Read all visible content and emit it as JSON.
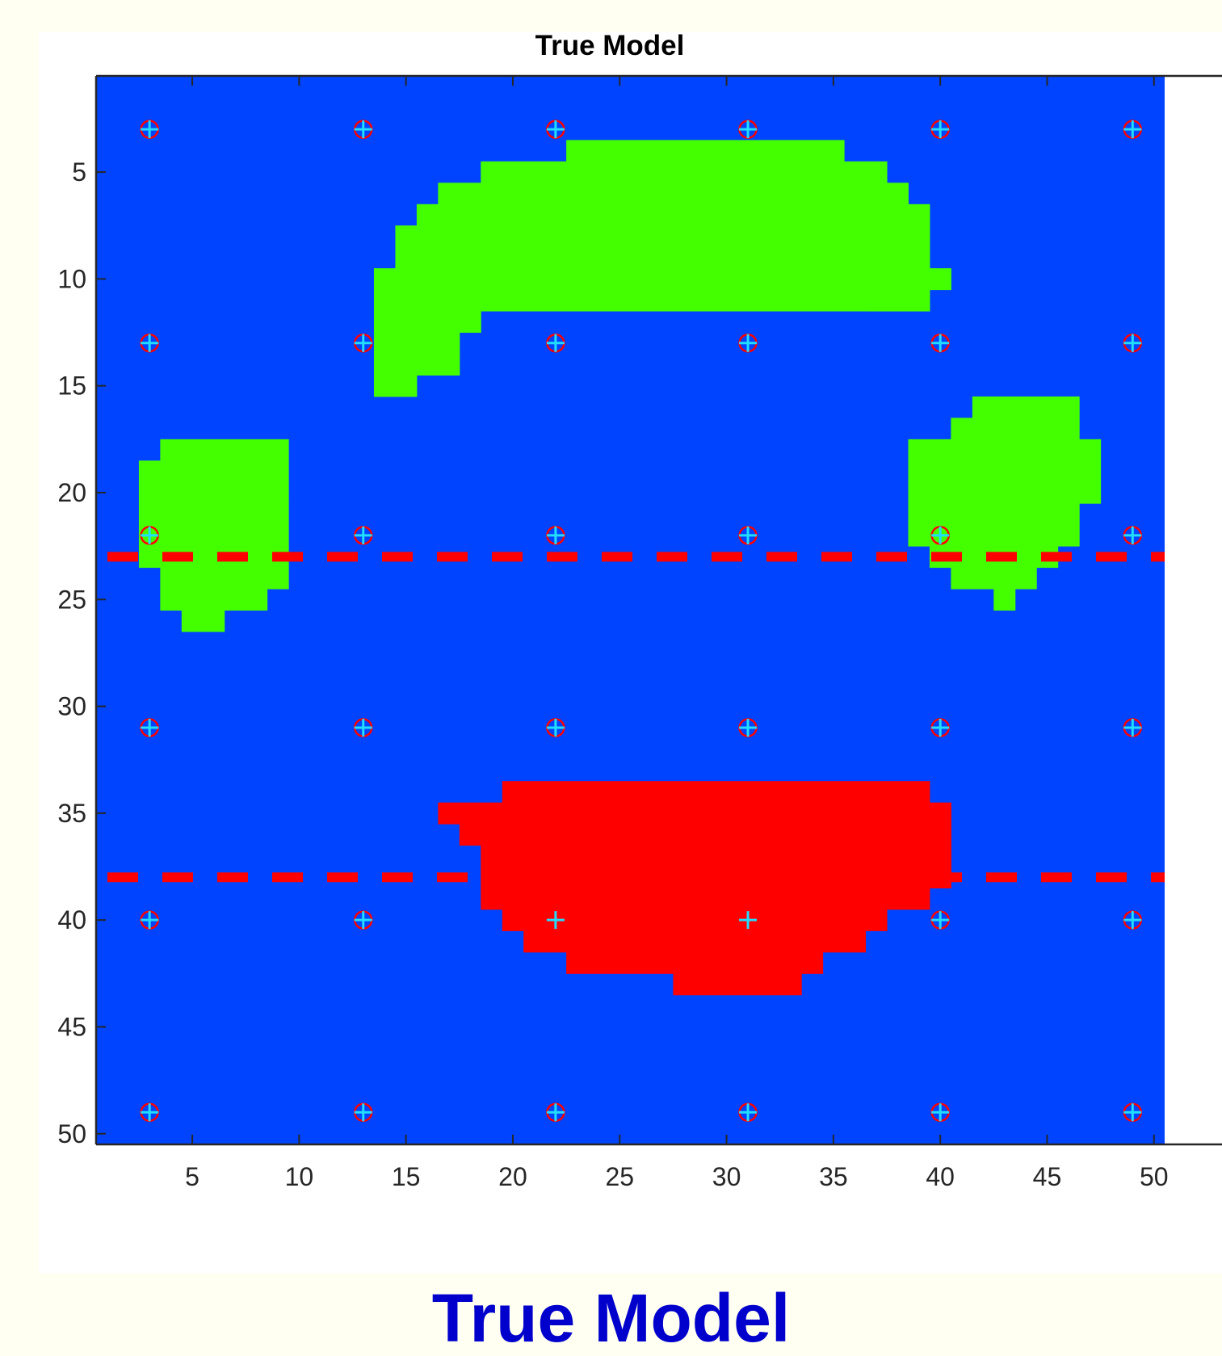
{
  "caption": "True Model",
  "chart_data": {
    "type": "heatmap",
    "title": "True Model",
    "xlabel": "",
    "ylabel": "",
    "xlim": [
      0.5,
      50.5
    ],
    "ylim": [
      0.5,
      50.5
    ],
    "y_reversed": true,
    "x_ticks": [
      5,
      10,
      15,
      20,
      25,
      30,
      35,
      40,
      45,
      50
    ],
    "y_ticks": [
      5,
      10,
      15,
      20,
      25,
      30,
      35,
      40,
      45,
      50
    ],
    "colors": {
      "background": "#0044ff",
      "green": "#44ff00",
      "red": "#ff0000",
      "receiver": "#22ddff",
      "source": "#ff0000",
      "profile_line": "#ff0000",
      "axis": "#262626"
    },
    "background_value": "blue",
    "anomalies": [
      {
        "name": "",
        "color": "green",
        "rows": [
          [
            4,
            23,
            35
          ],
          [
            5,
            19,
            37
          ],
          [
            6,
            17,
            38
          ],
          [
            7,
            16,
            39
          ],
          [
            8,
            15,
            39
          ],
          [
            9,
            15,
            33
          ],
          [
            10,
            14,
            35
          ],
          [
            11,
            14,
            39
          ],
          [
            12,
            14,
            18
          ],
          [
            13,
            14,
            17
          ],
          [
            14,
            14,
            17
          ],
          [
            15,
            14,
            15
          ]
        ],
        "extra_cells": [
          [
            9,
            34,
            39
          ],
          [
            10,
            36,
            39
          ],
          [
            10,
            40,
            40
          ],
          [
            10,
            20,
            22
          ],
          [
            9,
            16,
            22
          ],
          [
            11,
            37,
            39
          ],
          [
            10,
            15,
            19
          ],
          [
            11,
            15,
            17
          ]
        ]
      },
      {
        "name": "",
        "color": "green",
        "rows": [
          [
            18,
            4,
            9
          ],
          [
            19,
            3,
            9
          ],
          [
            20,
            3,
            9
          ],
          [
            21,
            3,
            9
          ],
          [
            22,
            3,
            9
          ],
          [
            23,
            3,
            9
          ],
          [
            24,
            4,
            9
          ],
          [
            25,
            4,
            8
          ],
          [
            26,
            5,
            6
          ]
        ]
      },
      {
        "name": "",
        "color": "green",
        "rows": [
          [
            16,
            42,
            46
          ],
          [
            17,
            41,
            46
          ],
          [
            18,
            39,
            47
          ],
          [
            19,
            39,
            47
          ],
          [
            20,
            39,
            47
          ],
          [
            21,
            39,
            46
          ],
          [
            22,
            39,
            46
          ],
          [
            23,
            40,
            45
          ],
          [
            24,
            41,
            44
          ],
          [
            25,
            43,
            43
          ]
        ]
      },
      {
        "name": "",
        "color": "red",
        "rows": [
          [
            34,
            20,
            39
          ],
          [
            35,
            17,
            40
          ],
          [
            36,
            18,
            40
          ],
          [
            37,
            19,
            40
          ],
          [
            38,
            19,
            40
          ],
          [
            39,
            19,
            39
          ],
          [
            40,
            20,
            37
          ],
          [
            41,
            21,
            36
          ],
          [
            42,
            23,
            34
          ],
          [
            43,
            28,
            33
          ]
        ]
      }
    ],
    "receivers": {
      "x": [
        3,
        13,
        22,
        31,
        40,
        49
      ],
      "y": [
        3,
        13,
        22,
        31,
        40,
        49
      ]
    },
    "sources": {
      "x": [
        3,
        13,
        22,
        31,
        40,
        49
      ],
      "y": [
        3,
        13,
        22,
        31,
        40,
        49
      ]
    },
    "profile_lines": [
      23,
      38
    ]
  }
}
